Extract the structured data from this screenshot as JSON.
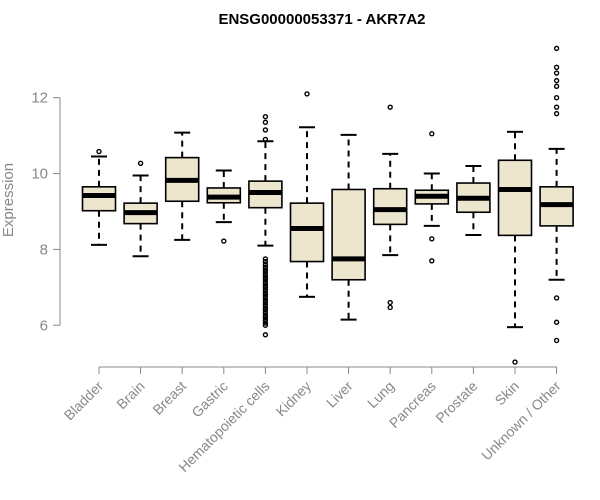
{
  "chart_data": {
    "type": "boxplot",
    "title": "ENSG00000053371 - AKR7A2",
    "xlabel": "",
    "ylabel": "Expression",
    "ylim": [
      4.9,
      13.6
    ],
    "yticks": [
      6,
      8,
      10,
      12
    ],
    "box_fill": "#ede6cf",
    "stroke_color": "#000000",
    "axis_color": "#888888",
    "groups": [
      {
        "name": "Bladder",
        "whisker_low": 8.12,
        "q1": 9.02,
        "median": 9.42,
        "q3": 9.65,
        "whisker_high": 10.45,
        "outliers": [
          10.58
        ]
      },
      {
        "name": "Brain",
        "whisker_low": 7.82,
        "q1": 8.68,
        "median": 8.97,
        "q3": 9.22,
        "whisker_high": 9.95,
        "outliers": [
          10.27
        ]
      },
      {
        "name": "Breast",
        "whisker_low": 8.25,
        "q1": 9.27,
        "median": 9.82,
        "q3": 10.42,
        "whisker_high": 11.08,
        "outliers": []
      },
      {
        "name": "Gastric",
        "whisker_low": 8.72,
        "q1": 9.23,
        "median": 9.38,
        "q3": 9.62,
        "whisker_high": 10.08,
        "outliers": [
          8.22
        ]
      },
      {
        "name": "Hematopoietic cells",
        "whisker_low": 8.1,
        "q1": 9.1,
        "median": 9.5,
        "q3": 9.8,
        "whisker_high": 10.85,
        "outliers": [
          11.5,
          11.35,
          11.15,
          10.9,
          7.75,
          7.68,
          7.6,
          7.53,
          7.46,
          7.4,
          7.33,
          7.26,
          7.2,
          7.13,
          7.06,
          7.0,
          6.93,
          6.86,
          6.8,
          6.73,
          6.66,
          6.6,
          6.53,
          6.46,
          6.4,
          6.33,
          6.26,
          6.2,
          6.13,
          6.06,
          6.0,
          5.75
        ]
      },
      {
        "name": "Kidney",
        "whisker_low": 6.75,
        "q1": 7.68,
        "median": 8.55,
        "q3": 9.22,
        "whisker_high": 11.22,
        "outliers": [
          12.1
        ]
      },
      {
        "name": "Liver",
        "whisker_low": 6.15,
        "q1": 7.2,
        "median": 7.75,
        "q3": 9.58,
        "whisker_high": 11.02,
        "outliers": []
      },
      {
        "name": "Lung",
        "whisker_low": 7.85,
        "q1": 8.66,
        "median": 9.05,
        "q3": 9.6,
        "whisker_high": 10.52,
        "outliers": [
          11.75,
          6.6,
          6.47
        ]
      },
      {
        "name": "Pancreas",
        "whisker_low": 8.62,
        "q1": 9.2,
        "median": 9.4,
        "q3": 9.56,
        "whisker_high": 10.0,
        "outliers": [
          11.05,
          8.28,
          7.7
        ]
      },
      {
        "name": "Prostate",
        "whisker_low": 8.38,
        "q1": 8.98,
        "median": 9.35,
        "q3": 9.75,
        "whisker_high": 10.2,
        "outliers": []
      },
      {
        "name": "Skin",
        "whisker_low": 5.95,
        "q1": 8.37,
        "median": 9.58,
        "q3": 10.35,
        "whisker_high": 11.1,
        "outliers": [
          5.03
        ]
      },
      {
        "name": "Unknown / Other",
        "whisker_low": 7.2,
        "q1": 8.62,
        "median": 9.18,
        "q3": 9.65,
        "whisker_high": 10.65,
        "outliers": [
          13.3,
          12.8,
          12.65,
          12.45,
          12.3,
          12.0,
          11.75,
          11.58,
          6.72,
          6.08,
          5.6
        ]
      }
    ]
  }
}
